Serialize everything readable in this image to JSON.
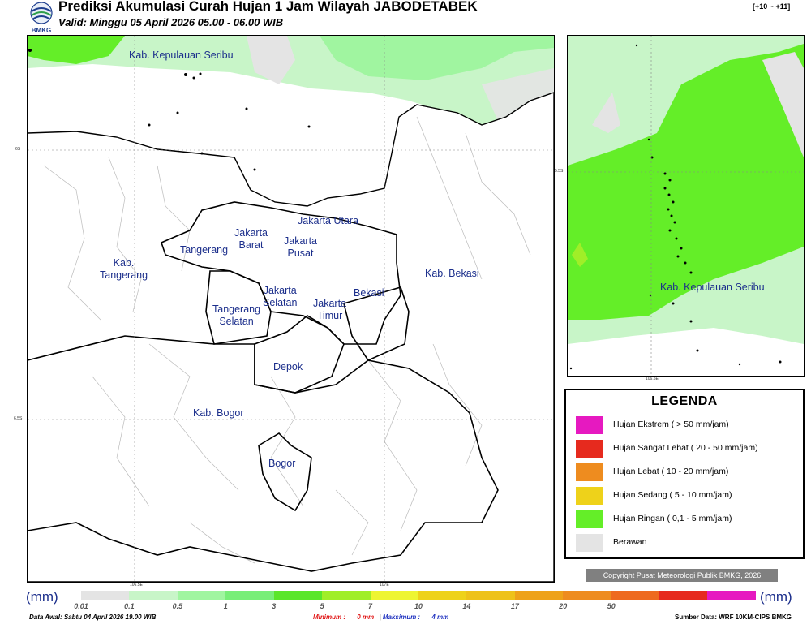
{
  "header": {
    "title": "Prediksi Akumulasi Curah Hujan 1 Jam Wilayah JABODETABEK",
    "subtitle": "Valid: Minggu 05 April 2026 05.00 - 06.00 WIB",
    "logo_label": "BMKG",
    "forecast_range": "[+10 ~ +11]"
  },
  "main_map": {
    "labels": {
      "kepulauan_seribu": "Kab. Kepulauan Seribu",
      "jakarta_utara": "Jakarta Utara",
      "jakarta_barat": "Jakarta\nBarat",
      "jakarta_pusat": "Jakarta\nPusat",
      "tangerang": "Tangerang",
      "kab_tangerang": "Kab.\nTangerang",
      "jakarta_selatan": "Jakarta\nSelatan",
      "jakarta_timur": "Jakarta\nTimur",
      "bekasi": "Bekasi",
      "kab_bekasi": "Kab. Bekasi",
      "tangerang_selatan": "Tangerang\nSelatan",
      "depok": "Depok",
      "kab_bogor": "Kab. Bogor",
      "bogor": "Bogor"
    },
    "ticks": {
      "lat_6s": "6S",
      "lat_65s": "6.5S",
      "lon_1065e": "106.5E",
      "lon_107e": "107E"
    }
  },
  "inset_map": {
    "label": "Kab. Kepulauan Seribu",
    "tick_lat": "5.5S",
    "tick_lon": "106.5E"
  },
  "legend": {
    "title": "LEGENDA",
    "items": [
      {
        "label": "Hujan Ekstrem ( > 50 mm/jam)",
        "color": "#e619c0"
      },
      {
        "label": "Hujan Sangat Lebat ( 20 - 50 mm/jam)",
        "color": "#e62a1e"
      },
      {
        "label": "Hujan Lebat ( 10 - 20 mm/jam)",
        "color": "#ee8c1f"
      },
      {
        "label": "Hujan Sedang ( 5 - 10 mm/jam)",
        "color": "#eed21a"
      },
      {
        "label": "Hujan Ringan ( 0,1 - 5 mm/jam)",
        "color": "#64ee28"
      },
      {
        "label": "Berawan",
        "color": "#e4e4e4"
      }
    ]
  },
  "copyright": "Copyright Pusat Meteorologi Publik BMKG, 2026",
  "colorbar": {
    "unit_left": "(mm)",
    "unit_right": "(mm)",
    "colors": [
      "#e4e4e4",
      "#c8f5c8",
      "#a0f5a0",
      "#78ee78",
      "#5ae62a",
      "#a0ee28",
      "#eef532",
      "#eed21a",
      "#eec21a",
      "#eea21a",
      "#ee8c1f",
      "#ee6a1f",
      "#e62a1e",
      "#e619c0"
    ],
    "ticks": [
      "0.01",
      "0.1",
      "0.5",
      "1",
      "3",
      "5",
      "7",
      "10",
      "14",
      "17",
      "20",
      "50"
    ]
  },
  "footer": {
    "data_awal": "Data Awal: Sabtu 04 April 2026 19.00 WIB",
    "minimum_label": "Minimum :",
    "minimum_value": "0 mm",
    "separator": "|",
    "maximum_label": "Maksimum :",
    "maximum_value": "4 mm",
    "source": "Sumber Data: WRF 10KM-CIPS BMKG"
  }
}
